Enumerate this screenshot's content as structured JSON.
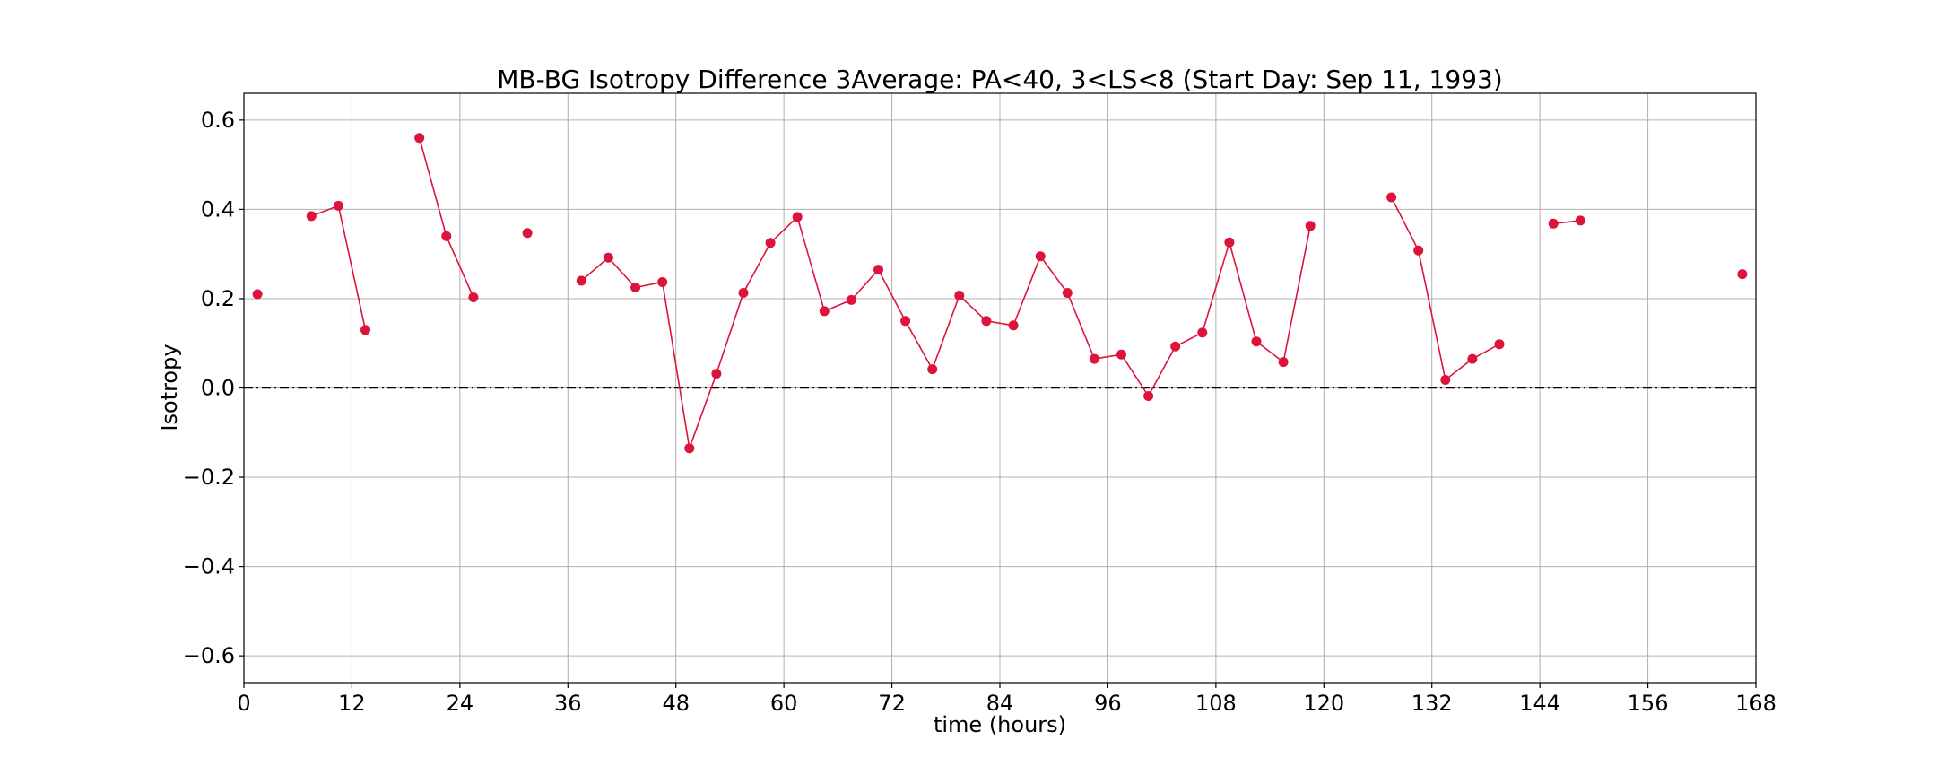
{
  "chart_data": {
    "type": "line",
    "title": "MB-BG Isotropy Difference 3Average: PA<40, 3<LS<8 (Start Day: Sep 11, 1993)",
    "xlabel": "time (hours)",
    "ylabel": "Isotropy",
    "xlim": [
      0,
      168
    ],
    "ylim": [
      -0.66,
      0.66
    ],
    "xticks": [
      0,
      12,
      24,
      36,
      48,
      60,
      72,
      84,
      96,
      108,
      120,
      132,
      144,
      156,
      168
    ],
    "xtick_labels": [
      "0",
      "12",
      "24",
      "36",
      "48",
      "60",
      "72",
      "84",
      "96",
      "108",
      "120",
      "132",
      "144",
      "156",
      "168"
    ],
    "yticks": [
      0.6,
      0.4,
      0.2,
      0.0,
      -0.2,
      -0.4,
      -0.6
    ],
    "ytick_labels": [
      "0.6",
      "0.4",
      "0.2",
      "0.0",
      "−0.2",
      "−0.4",
      "−0.6"
    ],
    "grid": true,
    "reference_line": {
      "y": 0.0,
      "style": "dash-dot",
      "color": "#000000"
    },
    "series_color": "#dc143c",
    "segments": [
      [
        [
          1.5,
          0.21
        ]
      ],
      [
        [
          7.5,
          0.385
        ],
        [
          10.5,
          0.408
        ],
        [
          13.5,
          0.13
        ]
      ],
      [
        [
          19.5,
          0.56
        ],
        [
          22.5,
          0.34
        ],
        [
          25.5,
          0.203
        ]
      ],
      [
        [
          31.5,
          0.347
        ]
      ],
      [
        [
          37.5,
          0.24
        ],
        [
          40.5,
          0.292
        ],
        [
          43.5,
          0.225
        ],
        [
          46.5,
          0.237
        ],
        [
          49.5,
          -0.135
        ],
        [
          52.5,
          0.032
        ],
        [
          55.5,
          0.213
        ],
        [
          58.5,
          0.325
        ],
        [
          61.5,
          0.383
        ],
        [
          64.5,
          0.172
        ],
        [
          67.5,
          0.197
        ],
        [
          70.5,
          0.265
        ],
        [
          73.5,
          0.15
        ],
        [
          76.5,
          0.042
        ],
        [
          79.5,
          0.207
        ],
        [
          82.5,
          0.15
        ],
        [
          85.5,
          0.14
        ],
        [
          88.5,
          0.295
        ],
        [
          91.5,
          0.213
        ],
        [
          94.5,
          0.065
        ],
        [
          97.5,
          0.075
        ],
        [
          100.5,
          -0.018
        ],
        [
          103.5,
          0.093
        ],
        [
          106.5,
          0.124
        ],
        [
          109.5,
          0.326
        ],
        [
          112.5,
          0.104
        ],
        [
          115.5,
          0.058
        ],
        [
          118.5,
          0.363
        ]
      ],
      [
        [
          127.5,
          0.427
        ],
        [
          130.5,
          0.308
        ],
        [
          133.5,
          0.018
        ],
        [
          136.5,
          0.065
        ],
        [
          139.5,
          0.098
        ]
      ],
      [
        [
          145.5,
          0.368
        ],
        [
          148.5,
          0.375
        ]
      ],
      [
        [
          166.5,
          0.255
        ]
      ]
    ]
  }
}
